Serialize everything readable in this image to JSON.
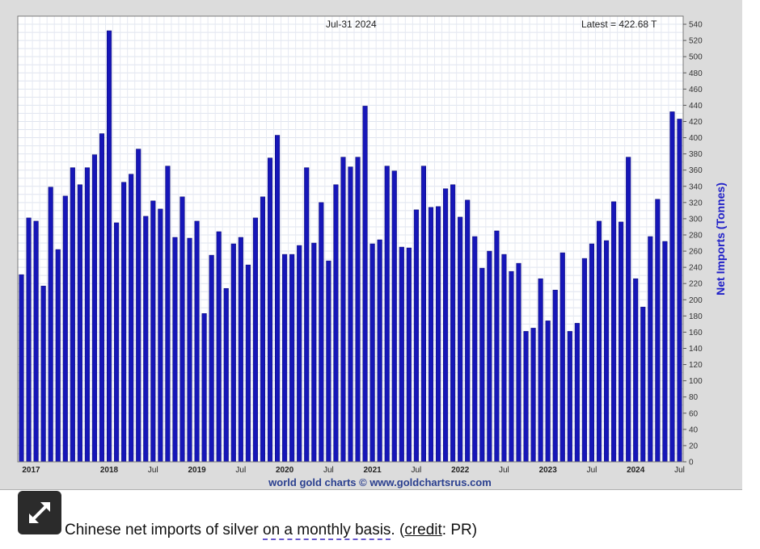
{
  "chart_data": {
    "type": "bar",
    "header_date": "Jul-31  2024",
    "header_latest": "Latest = 422.68 T",
    "ylabel": "Net Imports (Tonnes)",
    "ylim": [
      0,
      550
    ],
    "yticks": [
      0,
      20,
      40,
      60,
      80,
      100,
      120,
      140,
      160,
      180,
      200,
      220,
      240,
      260,
      280,
      300,
      320,
      340,
      360,
      380,
      400,
      420,
      440,
      460,
      480,
      500,
      520,
      540
    ],
    "grid": true,
    "bar_color": "#1616b8",
    "months": [
      "2017-01",
      "2017-02",
      "2017-03",
      "2017-04",
      "2017-05",
      "2017-06",
      "2017-07",
      "2017-08",
      "2017-09",
      "2017-10",
      "2017-11",
      "2017-12",
      "2018-01",
      "2018-02",
      "2018-03",
      "2018-04",
      "2018-05",
      "2018-06",
      "2018-07",
      "2018-08",
      "2018-09",
      "2018-10",
      "2018-11",
      "2018-12",
      "2019-01",
      "2019-02",
      "2019-03",
      "2019-04",
      "2019-05",
      "2019-06",
      "2019-07",
      "2019-08",
      "2019-09",
      "2019-10",
      "2019-11",
      "2019-12",
      "2020-01",
      "2020-02",
      "2020-03",
      "2020-04",
      "2020-05",
      "2020-06",
      "2020-07",
      "2020-08",
      "2020-09",
      "2020-10",
      "2020-11",
      "2020-12",
      "2021-01",
      "2021-02",
      "2021-03",
      "2021-04",
      "2021-05",
      "2021-06",
      "2021-07",
      "2021-08",
      "2021-09",
      "2021-10",
      "2021-11",
      "2021-12",
      "2022-01",
      "2022-02",
      "2022-03",
      "2022-04",
      "2022-05",
      "2022-06",
      "2022-07",
      "2022-08",
      "2022-09",
      "2022-10",
      "2022-11",
      "2022-12",
      "2023-01",
      "2023-02",
      "2023-03",
      "2023-04",
      "2023-05",
      "2023-06",
      "2023-07",
      "2023-08",
      "2023-09",
      "2023-10",
      "2023-11",
      "2023-12",
      "2024-01",
      "2024-02",
      "2024-03",
      "2024-04",
      "2024-05",
      "2024-06",
      "2024-07"
    ],
    "values": [
      231,
      301,
      297,
      217,
      339,
      262,
      328,
      363,
      342,
      363,
      379,
      405,
      532,
      295,
      345,
      355,
      386,
      303,
      322,
      312,
      365,
      277,
      327,
      276,
      297,
      183,
      255,
      284,
      214,
      269,
      277,
      243,
      301,
      327,
      375,
      403,
      256,
      256,
      267,
      363,
      270,
      320,
      248,
      342,
      376,
      364,
      376,
      439,
      269,
      274,
      365,
      359,
      265,
      264,
      311,
      365,
      314,
      315,
      337,
      342,
      302,
      323,
      278,
      239,
      260,
      285,
      256,
      235,
      245,
      161,
      165,
      226,
      174,
      212,
      258,
      161,
      171,
      251,
      269,
      297,
      273,
      321,
      296,
      376,
      226,
      191,
      278,
      324,
      272,
      432,
      423
    ],
    "x_tick_labels": [
      {
        "label": "2017",
        "year": true
      },
      {
        "label": "2018",
        "year": true
      },
      {
        "label": "Jul",
        "year": false
      },
      {
        "label": "2019",
        "year": true
      },
      {
        "label": "Jul",
        "year": false
      },
      {
        "label": "2020",
        "year": true
      },
      {
        "label": "Jul",
        "year": false
      },
      {
        "label": "2021",
        "year": true
      },
      {
        "label": "Jul",
        "year": false
      },
      {
        "label": "2022",
        "year": true
      },
      {
        "label": "Jul",
        "year": false
      },
      {
        "label": "2023",
        "year": true
      },
      {
        "label": "Jul",
        "year": false
      },
      {
        "label": "2024",
        "year": true
      },
      {
        "label": "Jul",
        "year": false
      }
    ],
    "credit_line": "world gold charts © www.goldchartsrus.com"
  },
  "caption": {
    "part1": "Chinese net imports of silver ",
    "part2": "on a monthly basis",
    "part3": ". (",
    "part4": "credit",
    "part5": ": PR)"
  },
  "expand_icon": "expand-arrows-icon"
}
